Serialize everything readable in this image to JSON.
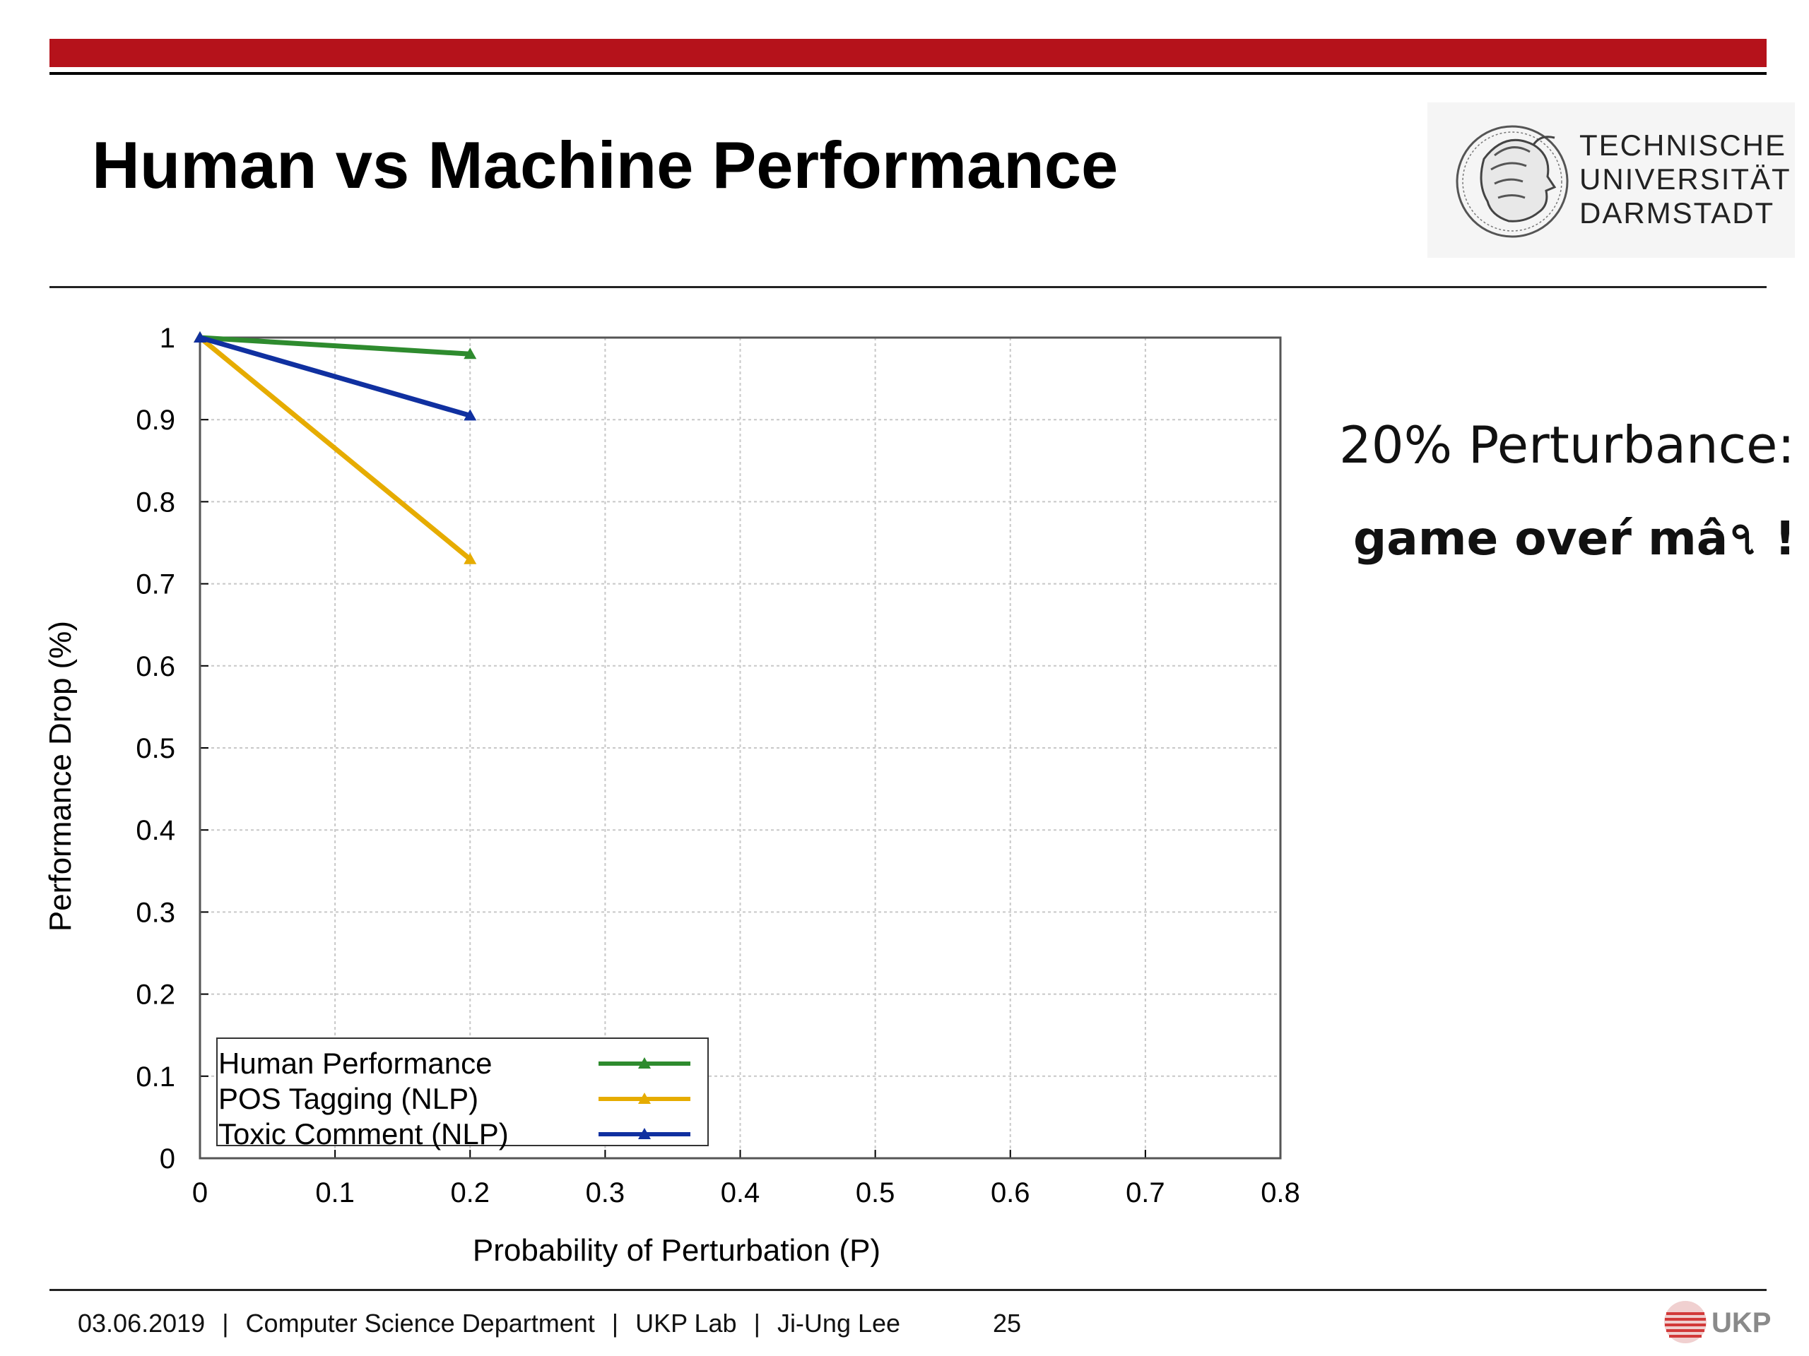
{
  "slide": {
    "title": "Human vs Machine Performance",
    "accent_color": "#b5121b"
  },
  "logo": {
    "lines": [
      "TECHNISCHE",
      "UNIVERSITÄT",
      "DARMSTADT"
    ],
    "icon": "athena-seal-icon"
  },
  "notes": {
    "line1": "20% Perturbance:",
    "line2": "game oveŕ mâ৭ !"
  },
  "footer": {
    "date": "03.06.2019",
    "department": "Computer Science Department",
    "lab": "UKP Lab",
    "author": "Ji-Ung Lee",
    "page": "25",
    "lab_logo": "UKP"
  },
  "chart_data": {
    "type": "line",
    "xlabel": "Probability of Perturbation (P)",
    "ylabel": "Performance Drop (%)",
    "xlim": [
      0,
      0.8
    ],
    "ylim": [
      0,
      1
    ],
    "xticks": [
      "0",
      "0.1",
      "0.2",
      "0.3",
      "0.4",
      "0.5",
      "0.6",
      "0.7",
      "0.8"
    ],
    "yticks": [
      "0",
      "0.1",
      "0.2",
      "0.3",
      "0.4",
      "0.5",
      "0.6",
      "0.7",
      "0.8",
      "0.9",
      "1"
    ],
    "grid": true,
    "legend_position": "bottom-left",
    "x": [
      0,
      0.2
    ],
    "series": [
      {
        "name": "Human Performance",
        "values": [
          1.0,
          0.98
        ],
        "color": "#2e8b2e"
      },
      {
        "name": "POS Tagging (NLP)",
        "values": [
          1.0,
          0.73
        ],
        "color": "#e6ac00"
      },
      {
        "name": "Toxic Comment (NLP)",
        "values": [
          1.0,
          0.905
        ],
        "color": "#1030a0"
      }
    ]
  }
}
